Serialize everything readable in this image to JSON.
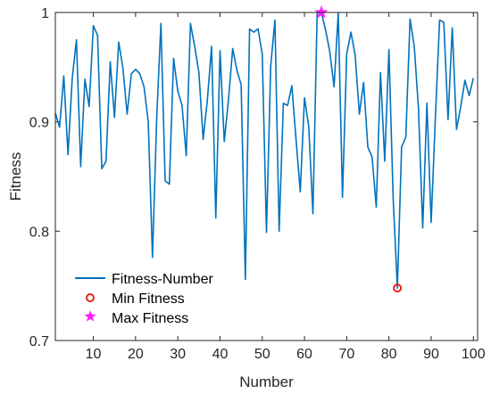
{
  "chart_data": {
    "type": "line",
    "xlabel": "Number",
    "ylabel": "Fitness",
    "xlim": [
      1,
      101
    ],
    "ylim": [
      0.7,
      1.0
    ],
    "xticks": [
      10,
      20,
      30,
      40,
      50,
      60,
      70,
      80,
      90,
      100
    ],
    "yticks": [
      0.7,
      0.8,
      0.9,
      1.0
    ],
    "ytick_labels": [
      "0.7",
      "0.8",
      "0.9",
      "1"
    ],
    "grid": false,
    "legend_position": "bottom-left",
    "colors": {
      "line": "#0072BD",
      "min_marker": "#e8211b",
      "max_marker": "#ff1dff",
      "axis": "#262626"
    },
    "series": [
      {
        "name": "Fitness-Number",
        "x": [
          1,
          2,
          3,
          4,
          5,
          6,
          7,
          8,
          9,
          10,
          11,
          12,
          13,
          14,
          15,
          16,
          17,
          18,
          19,
          20,
          21,
          22,
          23,
          24,
          25,
          26,
          27,
          28,
          29,
          30,
          31,
          32,
          33,
          34,
          35,
          36,
          37,
          38,
          39,
          40,
          41,
          42,
          43,
          44,
          45,
          46,
          47,
          48,
          49,
          50,
          51,
          52,
          53,
          54,
          55,
          56,
          57,
          58,
          59,
          60,
          61,
          62,
          63,
          64,
          65,
          66,
          67,
          68,
          69,
          70,
          71,
          72,
          73,
          74,
          75,
          76,
          77,
          78,
          79,
          80,
          81,
          82,
          83,
          84,
          85,
          86,
          87,
          88,
          89,
          90,
          91,
          92,
          93,
          94,
          95,
          96,
          97,
          98,
          99,
          100
        ],
        "values": [
          0.908,
          0.895,
          0.942,
          0.87,
          0.94,
          0.975,
          0.859,
          0.939,
          0.914,
          0.988,
          0.979,
          0.857,
          0.864,
          0.955,
          0.904,
          0.973,
          0.949,
          0.907,
          0.944,
          0.948,
          0.944,
          0.932,
          0.9,
          0.776,
          0.903,
          0.99,
          0.846,
          0.843,
          0.958,
          0.928,
          0.915,
          0.869,
          0.99,
          0.969,
          0.945,
          0.884,
          0.92,
          0.969,
          0.812,
          0.965,
          0.882,
          0.92,
          0.967,
          0.947,
          0.934,
          0.756,
          0.985,
          0.982,
          0.985,
          0.962,
          0.799,
          0.951,
          0.993,
          0.8,
          0.917,
          0.915,
          0.933,
          0.884,
          0.836,
          0.922,
          0.896,
          0.816,
          1.0,
          1.0,
          0.984,
          0.964,
          0.932,
          1.0,
          0.831,
          0.962,
          0.982,
          0.961,
          0.907,
          0.936,
          0.877,
          0.868,
          0.822,
          0.945,
          0.864,
          0.966,
          0.83,
          0.748,
          0.877,
          0.886,
          0.994,
          0.969,
          0.912,
          0.803,
          0.917,
          0.808,
          0.904,
          0.993,
          0.991,
          0.902,
          0.986,
          0.893,
          0.914,
          0.938,
          0.924,
          0.94
        ]
      },
      {
        "name": "Min Fitness",
        "x": [
          82
        ],
        "values": [
          0.748
        ]
      },
      {
        "name": "Max Fitness",
        "x": [
          64
        ],
        "values": [
          1.0
        ]
      }
    ]
  }
}
